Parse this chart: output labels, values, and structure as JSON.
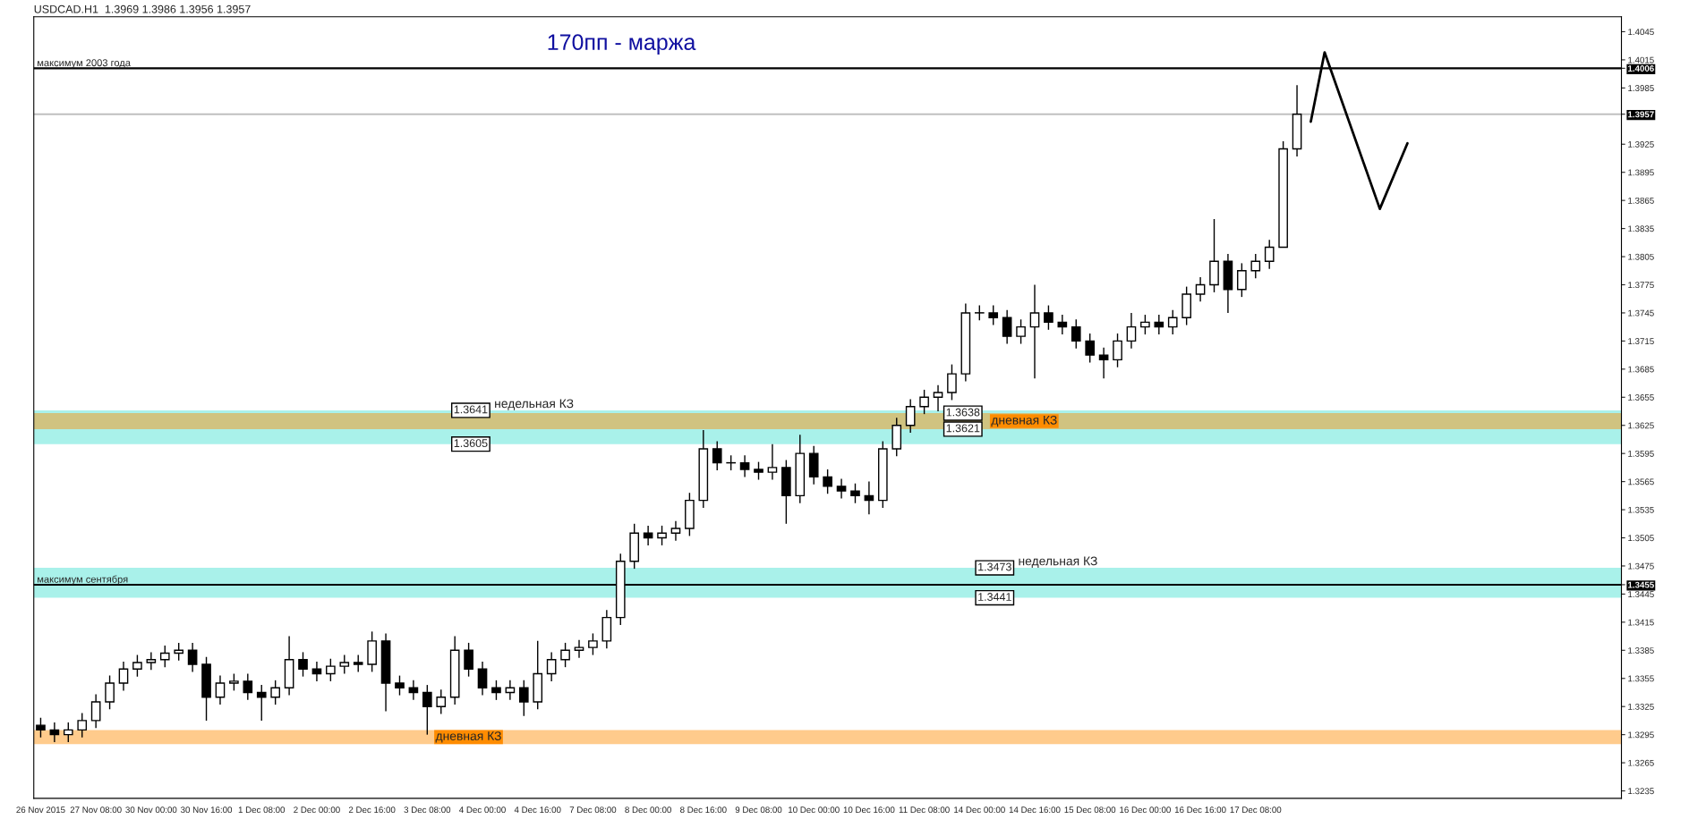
{
  "chart_data": {
    "type": "candlestick",
    "title": "USDCAD.H1  1.3969 1.3986 1.3956 1.3957",
    "color": "#000000",
    "categories": [
      "26 Nov 2015",
      null,
      null,
      null,
      "27 Nov 08:00",
      null,
      null,
      null,
      "30 Nov 00:00",
      null,
      null,
      null,
      "30 Nov 16:00",
      null,
      null,
      null,
      "1 Dec 08:00",
      null,
      null,
      null,
      "2 Dec 00:00",
      null,
      null,
      null,
      "2 Dec 16:00",
      null,
      null,
      null,
      "3 Dec 08:00",
      null,
      null,
      null,
      "4 Dec 00:00",
      null,
      null,
      null,
      "4 Dec 16:00",
      null,
      null,
      null,
      "7 Dec 08:00",
      null,
      null,
      null,
      "8 Dec 00:00",
      null,
      null,
      null,
      "8 Dec 16:00",
      null,
      null,
      null,
      "9 Dec 08:00",
      null,
      null,
      null,
      "10 Dec 00:00",
      null,
      null,
      null,
      "10 Dec 16:00",
      null,
      null,
      null,
      "11 Dec 08:00",
      null,
      null,
      null,
      "14 Dec 00:00",
      null,
      null,
      null,
      "14 Dec 16:00",
      null,
      null,
      null,
      "15 Dec 08:00",
      null,
      null,
      null,
      "16 Dec 00:00",
      null,
      null,
      null,
      "16 Dec 16:00",
      null,
      null,
      null,
      "17 Dec 08:00",
      null,
      null,
      null,
      null,
      null,
      null,
      null,
      null,
      null,
      null,
      null,
      null,
      null,
      null,
      null,
      null,
      null,
      null,
      null,
      null,
      null,
      null,
      null,
      null,
      null,
      null
    ],
    "ohlc": [
      [
        1.3305,
        1.3313,
        1.3292,
        1.33
      ],
      [
        1.33,
        1.3308,
        1.3287,
        1.3295
      ],
      [
        1.3295,
        1.3308,
        1.3287,
        1.33
      ],
      [
        1.33,
        1.3318,
        1.3292,
        1.331
      ],
      [
        1.331,
        1.3338,
        1.3302,
        1.333
      ],
      [
        1.333,
        1.3358,
        1.3322,
        1.335
      ],
      [
        1.335,
        1.3373,
        1.3342,
        1.3365
      ],
      [
        1.3365,
        1.338,
        1.3357,
        1.3372
      ],
      [
        1.3372,
        1.3383,
        1.3364,
        1.3375
      ],
      [
        1.3375,
        1.339,
        1.3367,
        1.3382
      ],
      [
        1.3382,
        1.3393,
        1.3374,
        1.3385
      ],
      [
        1.3385,
        1.3393,
        1.3362,
        1.337
      ],
      [
        1.337,
        1.3378,
        1.331,
        1.3335
      ],
      [
        1.3335,
        1.3358,
        1.3327,
        1.335
      ],
      [
        1.335,
        1.336,
        1.3342,
        1.3352
      ],
      [
        1.3352,
        1.336,
        1.3332,
        1.334
      ],
      [
        1.334,
        1.3348,
        1.331,
        1.3335
      ],
      [
        1.3335,
        1.3353,
        1.3327,
        1.3345
      ],
      [
        1.3345,
        1.34,
        1.3337,
        1.3375
      ],
      [
        1.3375,
        1.3383,
        1.3357,
        1.3365
      ],
      [
        1.3365,
        1.3373,
        1.3352,
        1.336
      ],
      [
        1.336,
        1.3376,
        1.3352,
        1.3368
      ],
      [
        1.3368,
        1.338,
        1.336,
        1.3372
      ],
      [
        1.3372,
        1.338,
        1.3362,
        1.337
      ],
      [
        1.337,
        1.3405,
        1.3362,
        1.3395
      ],
      [
        1.3395,
        1.3403,
        1.332,
        1.335
      ],
      [
        1.335,
        1.3358,
        1.3337,
        1.3345
      ],
      [
        1.3345,
        1.3353,
        1.3332,
        1.334
      ],
      [
        1.334,
        1.3348,
        1.3295,
        1.3325
      ],
      [
        1.3325,
        1.3343,
        1.3317,
        1.3335
      ],
      [
        1.3335,
        1.34,
        1.3327,
        1.3385
      ],
      [
        1.3385,
        1.3393,
        1.3357,
        1.3365
      ],
      [
        1.3365,
        1.3373,
        1.3337,
        1.3345
      ],
      [
        1.3345,
        1.3353,
        1.3332,
        1.334
      ],
      [
        1.334,
        1.3353,
        1.3332,
        1.3345
      ],
      [
        1.3345,
        1.3353,
        1.3315,
        1.333
      ],
      [
        1.333,
        1.3395,
        1.3322,
        1.336
      ],
      [
        1.336,
        1.3383,
        1.3352,
        1.3375
      ],
      [
        1.3375,
        1.3393,
        1.3367,
        1.3385
      ],
      [
        1.3385,
        1.3396,
        1.3377,
        1.3388
      ],
      [
        1.3388,
        1.3403,
        1.338,
        1.3395
      ],
      [
        1.3395,
        1.3428,
        1.3387,
        1.342
      ],
      [
        1.342,
        1.3488,
        1.3412,
        1.348
      ],
      [
        1.348,
        1.352,
        1.3472,
        1.351
      ],
      [
        1.351,
        1.3518,
        1.3497,
        1.3505
      ],
      [
        1.3505,
        1.3518,
        1.3497,
        1.351
      ],
      [
        1.351,
        1.3523,
        1.3502,
        1.3515
      ],
      [
        1.3515,
        1.3553,
        1.3507,
        1.3545
      ],
      [
        1.3545,
        1.362,
        1.3537,
        1.36
      ],
      [
        1.36,
        1.3608,
        1.3577,
        1.3585
      ],
      [
        1.3585,
        1.3593,
        1.3577,
        1.3585
      ],
      [
        1.3585,
        1.3593,
        1.357,
        1.3578
      ],
      [
        1.3578,
        1.3586,
        1.3567,
        1.3575
      ],
      [
        1.3575,
        1.3605,
        1.3567,
        1.358
      ],
      [
        1.358,
        1.3588,
        1.352,
        1.355
      ],
      [
        1.355,
        1.3615,
        1.3542,
        1.3595
      ],
      [
        1.3595,
        1.3603,
        1.3562,
        1.357
      ],
      [
        1.357,
        1.3578,
        1.3552,
        1.356
      ],
      [
        1.356,
        1.3568,
        1.3547,
        1.3555
      ],
      [
        1.3555,
        1.3563,
        1.3542,
        1.355
      ],
      [
        1.355,
        1.3565,
        1.353,
        1.3545
      ],
      [
        1.3545,
        1.3608,
        1.3537,
        1.36
      ],
      [
        1.36,
        1.3633,
        1.3592,
        1.3625
      ],
      [
        1.3625,
        1.3653,
        1.3617,
        1.3645
      ],
      [
        1.3645,
        1.3663,
        1.3637,
        1.3655
      ],
      [
        1.3655,
        1.3668,
        1.364,
        1.366
      ],
      [
        1.366,
        1.369,
        1.3652,
        1.368
      ],
      [
        1.368,
        1.3755,
        1.3672,
        1.3745
      ],
      [
        1.3745,
        1.3753,
        1.3737,
        1.3745
      ],
      [
        1.3745,
        1.3753,
        1.3732,
        1.374
      ],
      [
        1.374,
        1.3748,
        1.3712,
        1.372
      ],
      [
        1.372,
        1.3738,
        1.3712,
        1.373
      ],
      [
        1.373,
        1.3775,
        1.3675,
        1.3745
      ],
      [
        1.3745,
        1.3753,
        1.3727,
        1.3735
      ],
      [
        1.3735,
        1.3743,
        1.3722,
        1.373
      ],
      [
        1.373,
        1.3738,
        1.3707,
        1.3715
      ],
      [
        1.3715,
        1.3723,
        1.3692,
        1.37
      ],
      [
        1.37,
        1.3708,
        1.3675,
        1.3695
      ],
      [
        1.3695,
        1.3723,
        1.3687,
        1.3715
      ],
      [
        1.3715,
        1.3745,
        1.3707,
        1.373
      ],
      [
        1.373,
        1.3743,
        1.3722,
        1.3735
      ],
      [
        1.3735,
        1.3743,
        1.3722,
        1.373
      ],
      [
        1.373,
        1.3748,
        1.3722,
        1.374
      ],
      [
        1.374,
        1.3773,
        1.3732,
        1.3765
      ],
      [
        1.3765,
        1.3783,
        1.3757,
        1.3775
      ],
      [
        1.3775,
        1.3845,
        1.3767,
        1.38
      ],
      [
        1.38,
        1.3808,
        1.3745,
        1.377
      ],
      [
        1.377,
        1.3798,
        1.3762,
        1.379
      ],
      [
        1.379,
        1.3808,
        1.3782,
        1.38
      ],
      [
        1.38,
        1.3823,
        1.3792,
        1.3815
      ],
      [
        1.3815,
        1.3928,
        1.3815,
        1.392
      ],
      [
        1.392,
        1.3988,
        1.3912,
        1.3957
      ],
      null,
      null,
      null,
      null,
      null,
      null,
      null,
      null,
      null,
      null,
      null,
      null,
      null,
      null,
      null,
      null,
      null,
      null,
      null,
      null,
      null,
      null,
      null
    ],
    "series": [
      {
        "type": "line",
        "color": "#000000",
        "values": [
          null,
          null,
          null,
          null,
          null,
          null,
          null,
          null,
          null,
          null,
          null,
          null,
          null,
          null,
          null,
          null,
          null,
          null,
          null,
          null,
          null,
          null,
          null,
          null,
          null,
          null,
          null,
          null,
          null,
          null,
          null,
          null,
          null,
          null,
          null,
          null,
          null,
          null,
          null,
          null,
          null,
          null,
          null,
          null,
          null,
          null,
          null,
          null,
          null,
          null,
          null,
          null,
          null,
          null,
          null,
          null,
          null,
          null,
          null,
          null,
          null,
          null,
          null,
          null,
          null,
          null,
          null,
          null,
          null,
          null,
          null,
          null,
          null,
          null,
          null,
          null,
          null,
          null,
          null,
          null,
          null,
          null,
          null,
          null,
          null,
          null,
          null,
          null,
          null,
          null,
          null,
          null,
          1.3949,
          1.4023,
          null,
          null,
          null,
          1.3856,
          null,
          1.3926,
          null,
          null,
          null,
          null,
          null,
          null,
          null,
          null,
          null,
          null,
          null,
          null,
          null,
          null,
          null
        ]
      }
    ],
    "ylim": [
      1.3227,
      1.4061
    ],
    "yticks": [
      1.3235,
      1.3265,
      1.3295,
      1.3325,
      1.3355,
      1.3385,
      1.3415,
      1.3445,
      1.3455,
      1.3475,
      1.3505,
      1.3535,
      1.3565,
      1.3595,
      1.3625,
      1.3655,
      1.3685,
      1.3715,
      1.3745,
      1.3775,
      1.3805,
      1.3835,
      1.3865,
      1.3895,
      1.3925,
      1.3957,
      1.3985,
      1.4006,
      1.4015,
      1.4045
    ],
    "ref_lines": [
      {
        "axis": "y",
        "value": 1.4006,
        "label": "максимум 2003 года",
        "color": "#000000"
      },
      {
        "axis": "y",
        "value": 1.3957,
        "color": "#c0c0c0"
      },
      {
        "axis": "y",
        "value": 1.3455,
        "label": "максимум сентября",
        "color": "#000000"
      }
    ],
    "bands": [
      {
        "axis": "y",
        "from": 1.3605,
        "to": 1.3641,
        "label": "недельная КЗ",
        "color": "#40e0d0"
      },
      {
        "axis": "y",
        "from": 1.3621,
        "to": 1.3638,
        "label": "дневная КЗ",
        "color": "#ff8c00"
      },
      {
        "axis": "y",
        "from": 1.3441,
        "to": 1.3473,
        "label": "недельная КЗ",
        "color": "#40e0d0"
      },
      {
        "axis": "y",
        "from": 1.3285,
        "to": 1.33,
        "label": "дневная КЗ",
        "color": "#ff8c00"
      }
    ],
    "annotations": [
      "170пп - маржа",
      {
        "text": "1.3641",
        "y": 1.3641
      },
      {
        "text": "1.3605",
        "y": 1.3605
      },
      {
        "text": "1.3638",
        "y": 1.3638
      },
      {
        "text": "1.3621",
        "y": 1.3621
      },
      {
        "text": "1.3473",
        "y": 1.3473
      },
      {
        "text": "1.3441",
        "y": 1.3441
      }
    ],
    "grid": false
  }
}
